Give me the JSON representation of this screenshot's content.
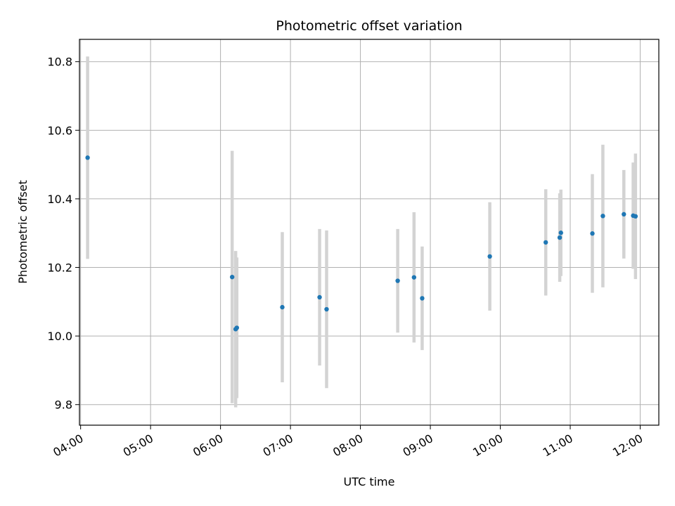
{
  "chart_data": {
    "type": "scatter",
    "title": "Photometric offset variation",
    "xlabel": "UTC time",
    "ylabel": "Photometric offset",
    "x_unit": "hours",
    "xlim": [
      "03:59",
      "12:16"
    ],
    "ylim": [
      9.74,
      10.865
    ],
    "xticks": [
      "04:00",
      "05:00",
      "06:00",
      "07:00",
      "08:00",
      "09:00",
      "10:00",
      "11:00",
      "12:00"
    ],
    "yticks": [
      "9.8",
      "10.0",
      "10.2",
      "10.4",
      "10.6",
      "10.8"
    ],
    "grid": true,
    "point_color": "#1f77b4",
    "errorbar_color": "#d3d3d3",
    "series": [
      {
        "points": [
          {
            "x": "04:06",
            "y": 10.52,
            "err": 0.295
          },
          {
            "x": "06:10",
            "y": 10.172,
            "err": 0.368
          },
          {
            "x": "06:13",
            "y": 10.02,
            "err": 0.228
          },
          {
            "x": "06:14",
            "y": 10.024,
            "err": 0.205
          },
          {
            "x": "06:53",
            "y": 10.084,
            "err": 0.219
          },
          {
            "x": "07:25",
            "y": 10.113,
            "err": 0.199
          },
          {
            "x": "07:31",
            "y": 10.078,
            "err": 0.23
          },
          {
            "x": "08:32",
            "y": 10.161,
            "err": 0.151
          },
          {
            "x": "08:46",
            "y": 10.171,
            "err": 0.19
          },
          {
            "x": "08:53",
            "y": 10.11,
            "err": 0.151
          },
          {
            "x": "09:51",
            "y": 10.232,
            "err": 0.158
          },
          {
            "x": "10:39",
            "y": 10.273,
            "err": 0.155
          },
          {
            "x": "10:51",
            "y": 10.287,
            "err": 0.129
          },
          {
            "x": "10:52",
            "y": 10.301,
            "err": 0.126
          },
          {
            "x": "11:19",
            "y": 10.299,
            "err": 0.173
          },
          {
            "x": "11:28",
            "y": 10.35,
            "err": 0.208
          },
          {
            "x": "11:46",
            "y": 10.355,
            "err": 0.129
          },
          {
            "x": "11:54",
            "y": 10.351,
            "err": 0.155
          },
          {
            "x": "11:56",
            "y": 10.349,
            "err": 0.183
          }
        ]
      }
    ]
  }
}
